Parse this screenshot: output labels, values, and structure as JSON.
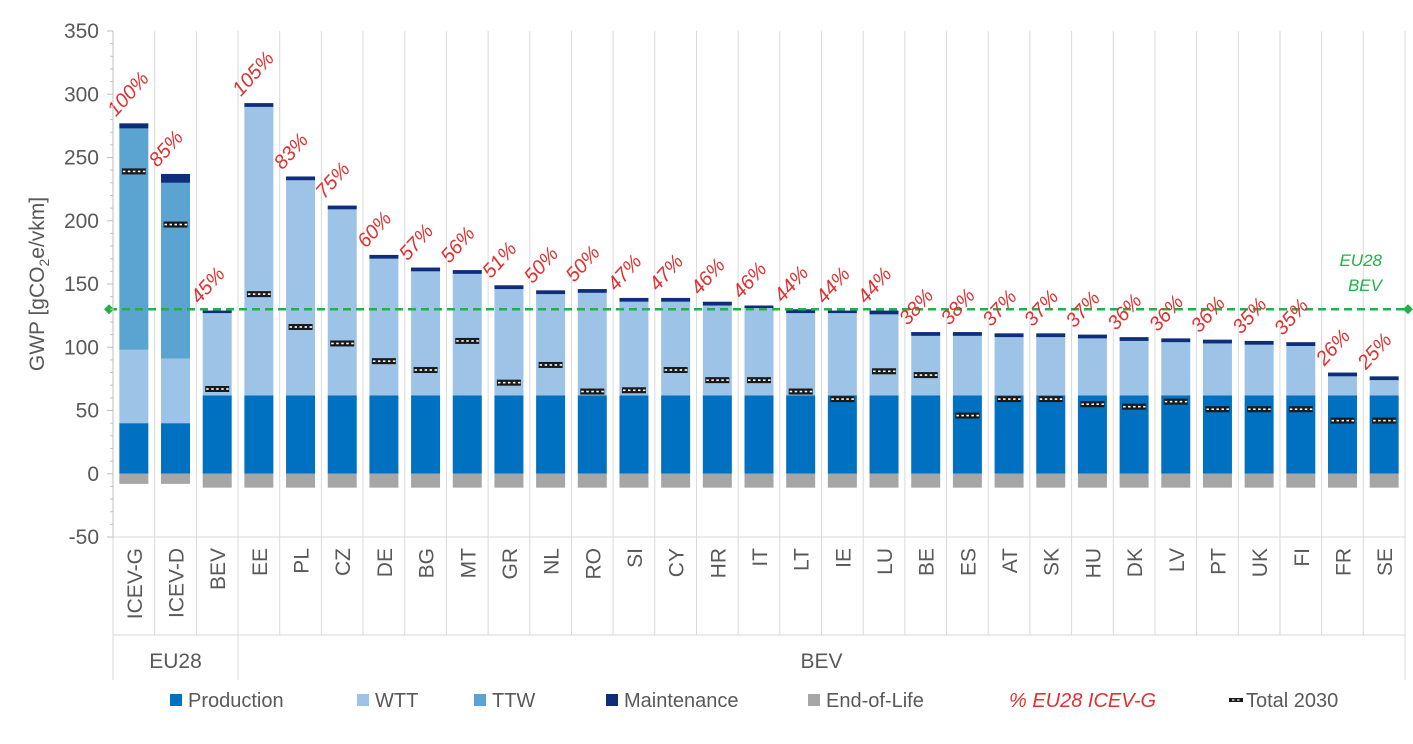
{
  "chart_data": {
    "type": "bar",
    "stacked": true,
    "ylabel_parts": [
      "GWP [gCO",
      "2",
      "e/vkm]"
    ],
    "ylim": [
      -50,
      350
    ],
    "yticks": [
      -50,
      0,
      50,
      100,
      150,
      200,
      250,
      300,
      350
    ],
    "categories": [
      "ICEV-G",
      "ICEV-D",
      "BEV",
      "EE",
      "PL",
      "CZ",
      "DE",
      "BG",
      "MT",
      "GR",
      "NL",
      "RO",
      "SI",
      "CY",
      "HR",
      "IT",
      "LT",
      "IE",
      "LU",
      "BE",
      "ES",
      "AT",
      "SK",
      "HU",
      "DK",
      "LV",
      "PT",
      "UK",
      "FI",
      "FR",
      "SE"
    ],
    "groups": [
      {
        "label": "EU28",
        "count": 3
      },
      {
        "label": "BEV",
        "count": 28
      }
    ],
    "series": [
      {
        "name": "Production",
        "color": "#0070C0",
        "values": [
          40,
          40,
          62,
          62,
          62,
          62,
          62,
          62,
          62,
          62,
          62,
          62,
          62,
          62,
          62,
          62,
          62,
          62,
          62,
          62,
          62,
          62,
          62,
          62,
          62,
          62,
          62,
          62,
          62,
          62,
          62
        ]
      },
      {
        "name": "WTT",
        "color": "#9DC3E6",
        "values": [
          58,
          51,
          65,
          228,
          170,
          147,
          108,
          98,
          96,
          84,
          80,
          81,
          74,
          74,
          71,
          69,
          65,
          65,
          64,
          47,
          47,
          46,
          46,
          45,
          43,
          42,
          41,
          40,
          39,
          15,
          12
        ]
      },
      {
        "name": "TTW",
        "color": "#5BA3D0",
        "values": [
          175,
          139,
          0,
          0,
          0,
          0,
          0,
          0,
          0,
          0,
          0,
          0,
          0,
          0,
          0,
          0,
          0,
          0,
          0,
          0,
          0,
          0,
          0,
          0,
          0,
          0,
          0,
          0,
          0,
          0,
          0
        ]
      },
      {
        "name": "Maintenance",
        "color": "#0D2E7A",
        "values": [
          4,
          7,
          2,
          3,
          3,
          3,
          3,
          3,
          3,
          3,
          3,
          3,
          3,
          3,
          3,
          2,
          3,
          2,
          3,
          3,
          3,
          3,
          3,
          3,
          3,
          3,
          3,
          3,
          3,
          3,
          3
        ]
      },
      {
        "name": "End-of-Life",
        "color": "#A6A6A6",
        "values": [
          -8,
          -8,
          -11,
          -11,
          -11,
          -11,
          -11,
          -11,
          -11,
          -11,
          -11,
          -11,
          -11,
          -11,
          -11,
          -11,
          -11,
          -11,
          -11,
          -11,
          -11,
          -11,
          -11,
          -11,
          -11,
          -11,
          -11,
          -11,
          -11,
          -11,
          -11
        ]
      }
    ],
    "total_2030": {
      "name": "Total 2030",
      "values": [
        239,
        197,
        67,
        142,
        116,
        103,
        89,
        82,
        105,
        72,
        86,
        65,
        66,
        82,
        74,
        74,
        65,
        59,
        81,
        78,
        46,
        59,
        59,
        55,
        53,
        57,
        51,
        51,
        51,
        42,
        42
      ]
    },
    "percent_labels": {
      "name": "% EU28 ICEV-G",
      "color": "#E03030",
      "values": [
        "100%",
        "85%",
        "45%",
        "105%",
        "83%",
        "75%",
        "60%",
        "57%",
        "56%",
        "51%",
        "50%",
        "50%",
        "47%",
        "47%",
        "46%",
        "46%",
        "44%",
        "44%",
        "44%",
        "38%",
        "38%",
        "37%",
        "37%",
        "37%",
        "36%",
        "36%",
        "36%",
        "35%",
        "35%",
        "26%",
        "25%"
      ]
    },
    "reference_line": {
      "label_line1": "EU28",
      "label_line2": "BEV",
      "value": 130,
      "color": "#22B04A"
    },
    "legend": {
      "placement": "bottom",
      "items": [
        "Production",
        "WTT",
        "TTW",
        "Maintenance",
        "End-of-Life",
        "% EU28 ICEV-G",
        "Total 2030"
      ]
    },
    "grid": {
      "vertical_separators": true,
      "horizontal": false
    }
  }
}
